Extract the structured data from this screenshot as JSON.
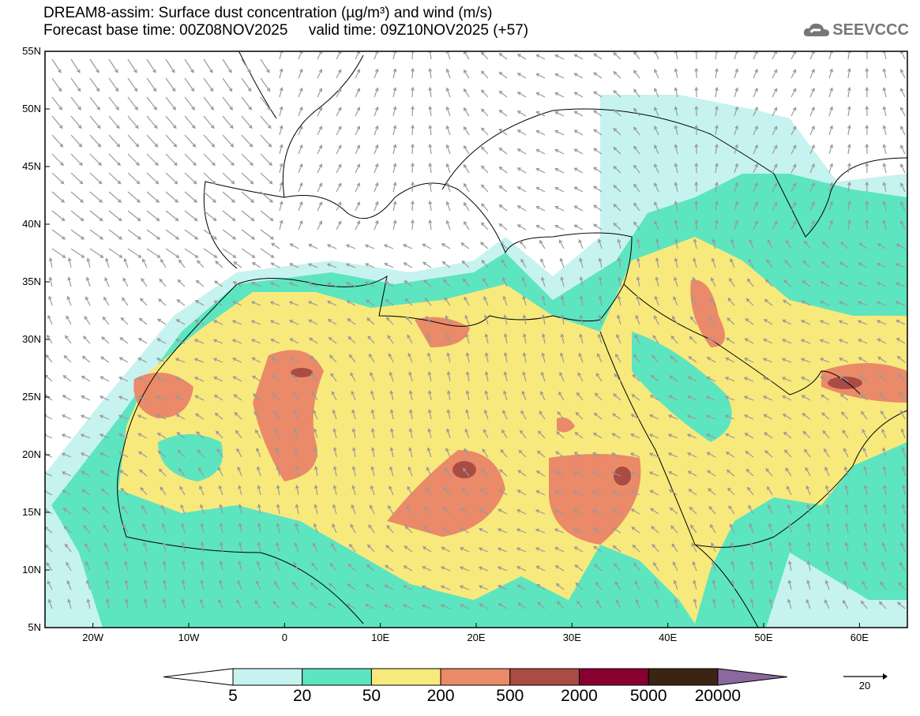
{
  "title": {
    "line1": "DREAM8-assim: Surface dust concentration (µg/m³) and wind (m/s)",
    "line2": "Forecast base time: 00Z08NOV2025     valid time: 09Z10NOV2025 (+57)"
  },
  "logo": {
    "text": "SEEVCCC",
    "icon": "cloud-icon"
  },
  "axes": {
    "lat_labels": [
      "55N",
      "50N",
      "45N",
      "40N",
      "35N",
      "30N",
      "25N",
      "20N",
      "15N",
      "10N",
      "5N"
    ],
    "lon_labels": [
      "20W",
      "10W",
      "0",
      "10E",
      "20E",
      "30E",
      "40E",
      "50E",
      "60E"
    ],
    "lon_range": [
      -25,
      65
    ],
    "lat_range": [
      5,
      55
    ]
  },
  "colorbar": {
    "labels": [
      "5",
      "20",
      "50",
      "200",
      "500",
      "2000",
      "5000",
      "20000"
    ],
    "colors": [
      "#c6f3ef",
      "#5de5c0",
      "#f8e97c",
      "#ea8a68",
      "#a94c44",
      "#880030",
      "#3b2414",
      "#8b68a0"
    ]
  },
  "wind_reference": {
    "value": "20",
    "unit": "m/s"
  }
}
